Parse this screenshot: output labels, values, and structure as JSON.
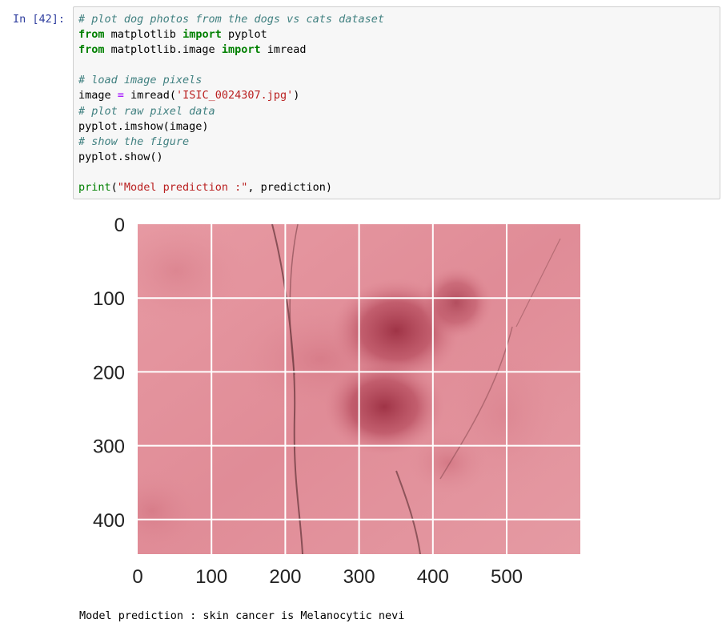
{
  "cell": {
    "prompt": "In [42]:",
    "lines": [
      [
        {
          "t": "# plot dog photos from the dogs vs cats dataset",
          "c": "cm"
        }
      ],
      [
        {
          "t": "from",
          "c": "kw"
        },
        {
          "t": " matplotlib ",
          "c": ""
        },
        {
          "t": "import",
          "c": "kw"
        },
        {
          "t": " pyplot",
          "c": ""
        }
      ],
      [
        {
          "t": "from",
          "c": "kw"
        },
        {
          "t": " matplotlib.image ",
          "c": ""
        },
        {
          "t": "import",
          "c": "kw"
        },
        {
          "t": " imread",
          "c": ""
        }
      ],
      [
        {
          "t": "",
          "c": ""
        }
      ],
      [
        {
          "t": "# load image pixels",
          "c": "cm"
        }
      ],
      [
        {
          "t": "image ",
          "c": ""
        },
        {
          "t": "=",
          "c": "op"
        },
        {
          "t": " imread(",
          "c": ""
        },
        {
          "t": "'ISIC_0024307.jpg'",
          "c": "st"
        },
        {
          "t": ")",
          "c": ""
        }
      ],
      [
        {
          "t": "# plot raw pixel data",
          "c": "cm"
        }
      ],
      [
        {
          "t": "pyplot.imshow(image)",
          "c": ""
        }
      ],
      [
        {
          "t": "# show the figure",
          "c": "cm"
        }
      ],
      [
        {
          "t": "pyplot.show()",
          "c": ""
        }
      ],
      [
        {
          "t": "",
          "c": ""
        }
      ],
      [
        {
          "t": "print",
          "c": "bi"
        },
        {
          "t": "(",
          "c": ""
        },
        {
          "t": "\"Model prediction :\"",
          "c": "st"
        },
        {
          "t": ", prediction)",
          "c": ""
        }
      ]
    ]
  },
  "figure": {
    "x_ticks": [
      "0",
      "100",
      "200",
      "300",
      "400",
      "500"
    ],
    "y_ticks": [
      "0",
      "100",
      "200",
      "300",
      "400"
    ],
    "image_name": "skin-lesion-image",
    "skin_color": "#e3929c",
    "lesion_color": "#a83a4a"
  },
  "output": {
    "text": "Model prediction : skin cancer is Melanocytic nevi"
  }
}
